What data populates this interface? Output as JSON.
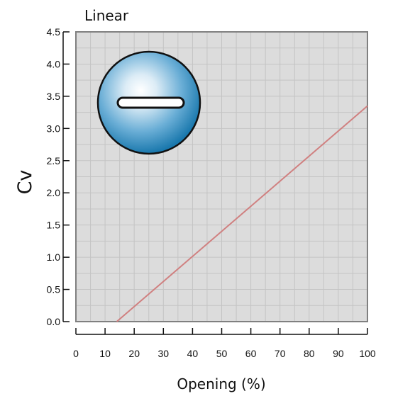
{
  "chart_data": {
    "type": "line",
    "title": "Linear",
    "xlabel": "Opening (%)",
    "ylabel": "Cv",
    "xlim": [
      0,
      100
    ],
    "ylim": [
      0,
      4.5
    ],
    "x_ticks": [
      "0",
      "10",
      "20",
      "30",
      "40",
      "50",
      "60",
      "70",
      "80",
      "90",
      "100"
    ],
    "y_ticks": [
      "0.0",
      "0.5",
      "1.0",
      "1.5",
      "2.0",
      "2.5",
      "3.0",
      "3.5",
      "4.0",
      "4.5"
    ],
    "grid": true,
    "series": [
      {
        "x": [
          14,
          100
        ],
        "y": [
          0.0,
          3.35
        ],
        "color": "#d08080"
      }
    ],
    "colors": {
      "plot_background": "#dcdcdc",
      "grid": "#c4c4c4",
      "frame": "#808080",
      "icon_gradient_center": "#ffffff",
      "icon_gradient_edge": "#1f7fb4"
    },
    "icon": "valve-ball-slot-icon"
  }
}
